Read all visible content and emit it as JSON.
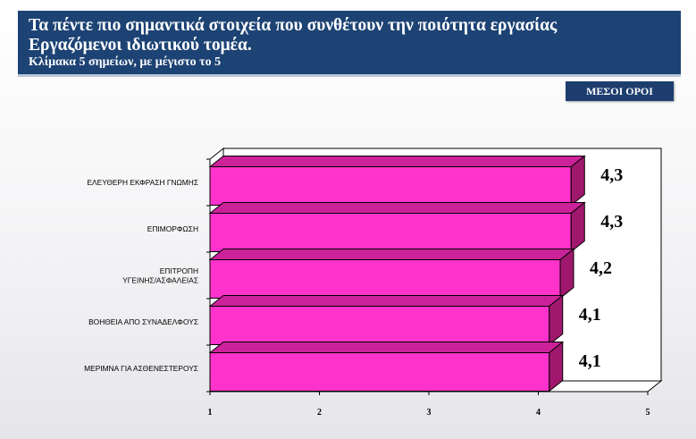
{
  "header": {
    "title_line1": "Τα πέντε πιο σημαντικά στοιχεία που συνθέτουν την ποιότητα εργασίας",
    "title_line2": "Εργαζόμενοι ιδιωτικού τομέα.",
    "subtitle": "Κλίμακα 5 σημείων, με μέγιστο το 5"
  },
  "badge": {
    "label": "ΜΕΣΟΙ ΟΡΟΙ"
  },
  "colors": {
    "header_bg": "#1d4374",
    "bar_front": "#ff33cc",
    "bar_top": "#cc2299",
    "bar_side": "#a0186e"
  },
  "chart_data": {
    "type": "bar",
    "orientation": "horizontal",
    "categories": [
      [
        "ΕΛΕΥΘΕΡΗ ΕΚΦΡΑΣΗ ΓΝΩΜΗΣ"
      ],
      [
        "ΕΠΙΜΟΡΦΩΣΗ"
      ],
      [
        "ΕΠΙΤΡΟΠΗ",
        "ΥΓΕΙΝΗΣ/ΑΣΦΑΛΕΙΑΣ"
      ],
      [
        "ΒΟΗΘΕΙΑ ΑΠΟ ΣΥΝΑΔΕΛΦΟΥΣ"
      ],
      [
        "ΜΕΡΙΜΝΑ ΓΙΑ ΑΣΘΕΝΕΣΤΕΡΟΥΣ"
      ]
    ],
    "values": [
      4.3,
      4.3,
      4.2,
      4.1,
      4.1
    ],
    "value_labels": [
      "4,3",
      "4,3",
      "4,2",
      "4,1",
      "4,1"
    ],
    "xlim": [
      1,
      5
    ],
    "xticks": [
      "1",
      "2",
      "3",
      "4",
      "5"
    ],
    "grid": false,
    "title": "",
    "xlabel": "",
    "ylabel": ""
  }
}
